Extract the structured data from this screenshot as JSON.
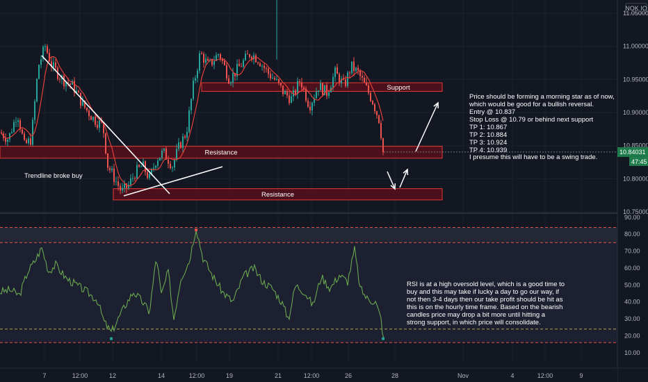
{
  "symbol_badge": "NOK IO",
  "price_axis": {
    "ticks": [
      "11.05000",
      "11.00000",
      "10.95000",
      "10.90000",
      "10.85000",
      "10.80000",
      "10.75000"
    ],
    "last_price": "10.84031",
    "countdown": "47:45"
  },
  "rsi_axis": {
    "ticks": [
      "90.00",
      "80.00",
      "70.00",
      "60.00",
      "50.00",
      "40.00",
      "30.00",
      "20.00",
      "10.00"
    ]
  },
  "time_axis": {
    "ticks": [
      "7",
      "12:00",
      "12",
      "14",
      "12:00",
      "19",
      "21",
      "12:00",
      "26",
      "28",
      "Nov",
      "4",
      "12:00",
      "9"
    ]
  },
  "zones": {
    "support_label": "Support",
    "resistance_upper_label": "Resistance",
    "resistance_lower_label": "Resistance"
  },
  "annotations": {
    "trendline_text": "Trendline broke buy",
    "trade_note": "Price should be forming a morning star as of now,\nwhich would be good for a bullish reversal.\nEntry @ 10.837\nStop Loss @ 10.79 or behind next support\nTP 1: 10.867\nTP 2: 10.884\nTP 3: 10.924\nTP 4: 10.939",
    "swing_note": "I presume this will have to be a swing trade.",
    "rsi_note": "RSI is at a high oversold level, which is a good time to\nbuy and this may take if lucky a day to go our way, if\nnot then 3-4 days then our take profit should be hit as\nthis is on the hourly time frame. Based on the bearish\ncandles price may drop a bit more until hitting a\nstrong support, in which price will consolidate."
  },
  "colors": {
    "background": "#131722",
    "bull": "#26a69a",
    "bear": "#ef5350",
    "ma": "#e0403a",
    "rsi": "#6aa84f",
    "zone_fill": "#7a0b16",
    "zone_border": "#e53935",
    "badge_green": "#1e7b4a"
  },
  "chart_data": [
    {
      "type": "candlestick",
      "panel": "price",
      "ylim": [
        10.75,
        11.07
      ],
      "last_price": 10.84031,
      "close_path": [
        {
          "t": 0,
          "v": 10.87
        },
        {
          "t": 12,
          "v": 10.86
        },
        {
          "t": 25,
          "v": 10.9
        },
        {
          "t": 35,
          "v": 10.85
        },
        {
          "t": 45,
          "v": 10.86
        },
        {
          "t": 55,
          "v": 10.97
        },
        {
          "t": 65,
          "v": 11.0
        },
        {
          "t": 75,
          "v": 10.97
        },
        {
          "t": 90,
          "v": 10.95
        },
        {
          "t": 105,
          "v": 10.94
        },
        {
          "t": 120,
          "v": 10.91
        },
        {
          "t": 135,
          "v": 10.89
        },
        {
          "t": 148,
          "v": 10.88
        },
        {
          "t": 155,
          "v": 10.82
        },
        {
          "t": 165,
          "v": 10.8
        },
        {
          "t": 175,
          "v": 10.78
        },
        {
          "t": 185,
          "v": 10.79
        },
        {
          "t": 195,
          "v": 10.81
        },
        {
          "t": 205,
          "v": 10.82
        },
        {
          "t": 215,
          "v": 10.8
        },
        {
          "t": 225,
          "v": 10.83
        },
        {
          "t": 235,
          "v": 10.84
        },
        {
          "t": 248,
          "v": 10.82
        },
        {
          "t": 258,
          "v": 10.85
        },
        {
          "t": 268,
          "v": 10.87
        },
        {
          "t": 278,
          "v": 10.94
        },
        {
          "t": 288,
          "v": 10.99
        },
        {
          "t": 300,
          "v": 10.97
        },
        {
          "t": 315,
          "v": 10.99
        },
        {
          "t": 330,
          "v": 10.95
        },
        {
          "t": 345,
          "v": 10.97
        },
        {
          "t": 360,
          "v": 10.99
        },
        {
          "t": 372,
          "v": 10.98
        },
        {
          "t": 385,
          "v": 10.96
        },
        {
          "t": 395,
          "v": 10.95
        },
        {
          "t": 408,
          "v": 10.93
        },
        {
          "t": 420,
          "v": 10.92
        },
        {
          "t": 432,
          "v": 10.95
        },
        {
          "t": 445,
          "v": 10.91
        },
        {
          "t": 458,
          "v": 10.94
        },
        {
          "t": 470,
          "v": 10.93
        },
        {
          "t": 482,
          "v": 10.96
        },
        {
          "t": 495,
          "v": 10.94
        },
        {
          "t": 505,
          "v": 10.97
        },
        {
          "t": 515,
          "v": 10.96
        },
        {
          "t": 525,
          "v": 10.94
        },
        {
          "t": 535,
          "v": 10.92
        },
        {
          "t": 545,
          "v": 10.89
        },
        {
          "t": 552,
          "v": 10.84
        }
      ],
      "zones": [
        {
          "label": "Support",
          "from": 10.945,
          "to": 10.935
        },
        {
          "label": "Resistance",
          "from": 10.848,
          "to": 10.832
        },
        {
          "label": "Resistance",
          "from": 10.785,
          "to": 10.77
        }
      ]
    },
    {
      "type": "line",
      "panel": "rsi",
      "ylim": [
        5,
        92
      ],
      "levels": [
        84,
        75,
        24,
        16
      ],
      "series": [
        {
          "values": [
            {
              "t": 0,
              "v": 46
            },
            {
              "t": 15,
              "v": 47
            },
            {
              "t": 28,
              "v": 44
            },
            {
              "t": 40,
              "v": 58
            },
            {
              "t": 50,
              "v": 64
            },
            {
              "t": 60,
              "v": 72
            },
            {
              "t": 70,
              "v": 58
            },
            {
              "t": 80,
              "v": 62
            },
            {
              "t": 95,
              "v": 54
            },
            {
              "t": 110,
              "v": 50
            },
            {
              "t": 125,
              "v": 46
            },
            {
              "t": 140,
              "v": 41
            },
            {
              "t": 150,
              "v": 28
            },
            {
              "t": 160,
              "v": 22
            },
            {
              "t": 170,
              "v": 30
            },
            {
              "t": 180,
              "v": 38
            },
            {
              "t": 192,
              "v": 46
            },
            {
              "t": 205,
              "v": 40
            },
            {
              "t": 215,
              "v": 34
            },
            {
              "t": 225,
              "v": 67
            },
            {
              "t": 232,
              "v": 44
            },
            {
              "t": 242,
              "v": 58
            },
            {
              "t": 250,
              "v": 30
            },
            {
              "t": 260,
              "v": 54
            },
            {
              "t": 272,
              "v": 64
            },
            {
              "t": 282,
              "v": 84
            },
            {
              "t": 292,
              "v": 66
            },
            {
              "t": 305,
              "v": 56
            },
            {
              "t": 320,
              "v": 46
            },
            {
              "t": 335,
              "v": 40
            },
            {
              "t": 350,
              "v": 55
            },
            {
              "t": 365,
              "v": 60
            },
            {
              "t": 378,
              "v": 52
            },
            {
              "t": 392,
              "v": 48
            },
            {
              "t": 405,
              "v": 40
            },
            {
              "t": 415,
              "v": 30
            },
            {
              "t": 425,
              "v": 50
            },
            {
              "t": 438,
              "v": 46
            },
            {
              "t": 450,
              "v": 38
            },
            {
              "t": 462,
              "v": 55
            },
            {
              "t": 475,
              "v": 48
            },
            {
              "t": 488,
              "v": 56
            },
            {
              "t": 500,
              "v": 52
            },
            {
              "t": 510,
              "v": 71
            },
            {
              "t": 518,
              "v": 48
            },
            {
              "t": 528,
              "v": 42
            },
            {
              "t": 540,
              "v": 40
            },
            {
              "t": 548,
              "v": 30
            },
            {
              "t": 552,
              "v": 17
            }
          ]
        }
      ]
    }
  ]
}
